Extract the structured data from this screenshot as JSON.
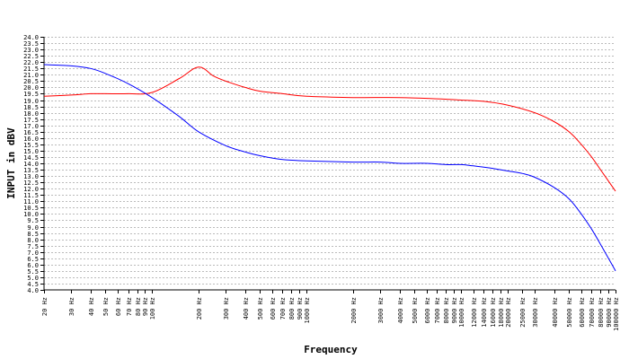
{
  "chart_data": {
    "type": "line",
    "title": "",
    "xlabel": "Frequency",
    "ylabel": "INPUT in dBV",
    "x_scale": "log",
    "xlim": [
      20,
      100000
    ],
    "ylim": [
      4.0,
      24.0
    ],
    "grid": true,
    "x_ticks": [
      {
        "value": 20,
        "label": "20 Hz"
      },
      {
        "value": 30,
        "label": "30 Hz"
      },
      {
        "value": 40,
        "label": "40 Hz"
      },
      {
        "value": 50,
        "label": "50 Hz"
      },
      {
        "value": 60,
        "label": "60 Hz"
      },
      {
        "value": 70,
        "label": "70 Hz"
      },
      {
        "value": 80,
        "label": "80 Hz"
      },
      {
        "value": 90,
        "label": "90 Hz"
      },
      {
        "value": 100,
        "label": "100 Hz"
      },
      {
        "value": 200,
        "label": "200 Hz"
      },
      {
        "value": 300,
        "label": "300 Hz"
      },
      {
        "value": 400,
        "label": "400 Hz"
      },
      {
        "value": 500,
        "label": "500 Hz"
      },
      {
        "value": 600,
        "label": "600 Hz"
      },
      {
        "value": 700,
        "label": "700 Hz"
      },
      {
        "value": 800,
        "label": "800 Hz"
      },
      {
        "value": 900,
        "label": "900 Hz"
      },
      {
        "value": 1000,
        "label": "1000 Hz"
      },
      {
        "value": 2000,
        "label": "2000 Hz"
      },
      {
        "value": 3000,
        "label": "3000 Hz"
      },
      {
        "value": 4000,
        "label": "4000 Hz"
      },
      {
        "value": 5000,
        "label": "5000 Hz"
      },
      {
        "value": 6000,
        "label": "6000 Hz"
      },
      {
        "value": 7000,
        "label": "7000 Hz"
      },
      {
        "value": 8000,
        "label": "8000 Hz"
      },
      {
        "value": 9000,
        "label": "9000 Hz"
      },
      {
        "value": 10000,
        "label": "10000 Hz"
      },
      {
        "value": 12000,
        "label": "12000 Hz"
      },
      {
        "value": 14000,
        "label": "14000 Hz"
      },
      {
        "value": 16000,
        "label": "16000 Hz"
      },
      {
        "value": 18000,
        "label": "18000 Hz"
      },
      {
        "value": 20000,
        "label": "20000 Hz"
      },
      {
        "value": 25000,
        "label": "25000 Hz"
      },
      {
        "value": 30000,
        "label": "30000 Hz"
      },
      {
        "value": 40000,
        "label": "40000 Hz"
      },
      {
        "value": 50000,
        "label": "50000 Hz"
      },
      {
        "value": 60000,
        "label": "60000 Hz"
      },
      {
        "value": 70000,
        "label": "70000 Hz"
      },
      {
        "value": 80000,
        "label": "80000 Hz"
      },
      {
        "value": 90000,
        "label": "90000 Hz"
      },
      {
        "value": 100000,
        "label": "100000 Hz"
      }
    ],
    "y_ticks": [
      "4.0",
      "4.5",
      "5.0",
      "5.5",
      "6.0",
      "6.5",
      "7.0",
      "7.5",
      "8.0",
      "8.5",
      "9.0",
      "9.5",
      "10.0",
      "10.5",
      "11.0",
      "11.5",
      "12.0",
      "12.5",
      "13.0",
      "13.5",
      "14.0",
      "14.5",
      "15.0",
      "15.5",
      "16.0",
      "16.5",
      "17.0",
      "17.5",
      "18.0",
      "18.5",
      "19.0",
      "19.5",
      "20.0",
      "20.5",
      "21.0",
      "21.5",
      "22.0",
      "22.5",
      "23.0",
      "23.5",
      "24.0"
    ],
    "series": [
      {
        "color": "#ff0000",
        "points": [
          [
            20,
            19.3
          ],
          [
            30,
            19.4
          ],
          [
            40,
            19.5
          ],
          [
            50,
            19.5
          ],
          [
            70,
            19.5
          ],
          [
            100,
            19.6
          ],
          [
            150,
            20.7
          ],
          [
            200,
            21.6
          ],
          [
            250,
            20.9
          ],
          [
            300,
            20.5
          ],
          [
            400,
            20.0
          ],
          [
            500,
            19.7
          ],
          [
            700,
            19.5
          ],
          [
            1000,
            19.3
          ],
          [
            2000,
            19.2
          ],
          [
            4000,
            19.2
          ],
          [
            7000,
            19.1
          ],
          [
            10000,
            19.0
          ],
          [
            14000,
            18.9
          ],
          [
            20000,
            18.6
          ],
          [
            30000,
            18.0
          ],
          [
            40000,
            17.3
          ],
          [
            50000,
            16.5
          ],
          [
            60000,
            15.5
          ],
          [
            70000,
            14.5
          ],
          [
            80000,
            13.5
          ],
          [
            90000,
            12.6
          ],
          [
            100000,
            11.8
          ]
        ]
      },
      {
        "color": "#0000ff",
        "points": [
          [
            20,
            21.8
          ],
          [
            30,
            21.7
          ],
          [
            40,
            21.5
          ],
          [
            50,
            21.1
          ],
          [
            70,
            20.3
          ],
          [
            100,
            19.2
          ],
          [
            150,
            17.7
          ],
          [
            200,
            16.5
          ],
          [
            300,
            15.4
          ],
          [
            400,
            14.9
          ],
          [
            500,
            14.6
          ],
          [
            700,
            14.3
          ],
          [
            1000,
            14.2
          ],
          [
            2000,
            14.1
          ],
          [
            3000,
            14.1
          ],
          [
            4000,
            14.0
          ],
          [
            6000,
            14.0
          ],
          [
            8000,
            13.9
          ],
          [
            10000,
            13.9
          ],
          [
            12000,
            13.8
          ],
          [
            16000,
            13.6
          ],
          [
            20000,
            13.4
          ],
          [
            25000,
            13.2
          ],
          [
            30000,
            12.9
          ],
          [
            40000,
            12.1
          ],
          [
            50000,
            11.2
          ],
          [
            60000,
            10.0
          ],
          [
            70000,
            8.8
          ],
          [
            80000,
            7.6
          ],
          [
            90000,
            6.5
          ],
          [
            100000,
            5.5
          ]
        ]
      }
    ]
  }
}
